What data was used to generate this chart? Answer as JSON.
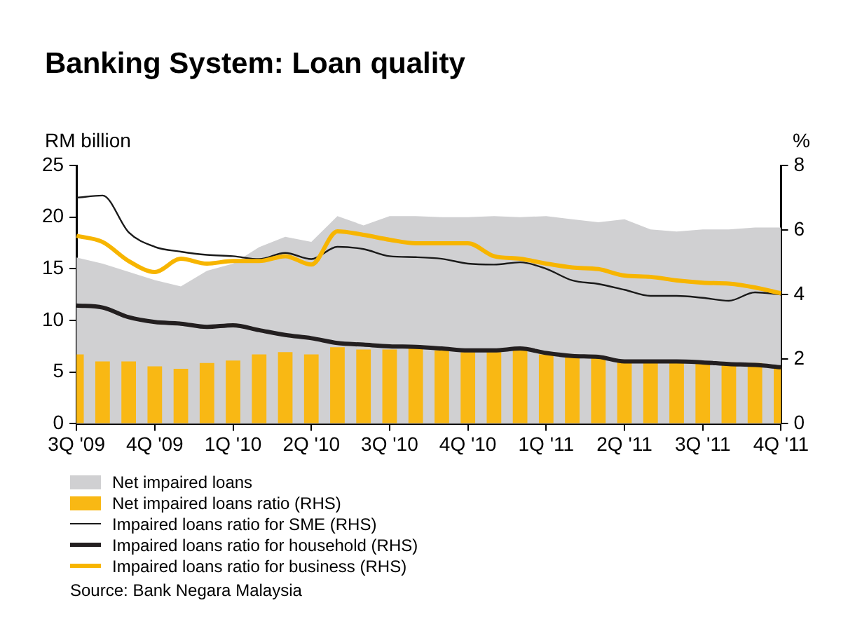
{
  "chart_data": {
    "type": "bar",
    "title": "Banking System: Loan quality",
    "ylabel": "RM billion",
    "y2label": "%",
    "categories": [
      "3Q '09",
      null,
      null,
      "4Q '09",
      null,
      null,
      "1Q '10",
      null,
      null,
      "2Q '10",
      null,
      null,
      "3Q '10",
      null,
      null,
      "4Q '10",
      null,
      null,
      "1Q '11",
      null,
      null,
      "2Q '11",
      null,
      null,
      "3Q '11",
      null,
      null,
      "4Q '11"
    ],
    "series": [
      {
        "name": "Net impaired loans",
        "type": "area",
        "color": "#d0d0d2",
        "values": [
          16.1,
          15.5,
          14.7,
          13.9,
          13.3,
          14.8,
          15.5,
          17.1,
          18.1,
          17.6,
          20.1,
          19.2,
          20.1,
          20.1,
          20.0,
          20.0,
          20.1,
          20.0,
          20.1,
          19.8,
          19.5,
          19.8,
          18.8,
          18.6,
          18.8,
          18.8,
          19.0,
          19.0
        ]
      },
      {
        "name": "Net impaired loans ratio (RHS)",
        "axis": "y2",
        "color": "#f9b814",
        "values": [
          2.15,
          1.93,
          1.93,
          1.78,
          1.7,
          1.88,
          1.96,
          2.15,
          2.22,
          2.15,
          2.37,
          2.3,
          2.3,
          2.33,
          2.27,
          2.22,
          2.22,
          2.27,
          2.15,
          2.07,
          2.07,
          1.93,
          1.93,
          1.93,
          1.93,
          1.88,
          1.88,
          1.78
        ]
      },
      {
        "name": "Impaired loans ratio for SME (RHS)",
        "type": "line",
        "axis": "y2",
        "color": "#1a1a1a",
        "values": [
          7.0,
          7.07,
          5.93,
          5.48,
          5.33,
          5.23,
          5.19,
          5.1,
          5.29,
          5.1,
          5.48,
          5.41,
          5.19,
          5.16,
          5.11,
          4.96,
          4.93,
          5.0,
          4.8,
          4.44,
          4.33,
          4.15,
          3.96,
          3.96,
          3.9,
          3.81,
          4.07,
          4.0
        ]
      },
      {
        "name": "Impaired loans ratio for household (RHS)",
        "type": "line",
        "axis": "y2",
        "color": "#231f20",
        "values": [
          3.66,
          3.6,
          3.3,
          3.15,
          3.1,
          3.0,
          3.05,
          2.9,
          2.75,
          2.65,
          2.5,
          2.45,
          2.4,
          2.38,
          2.33,
          2.27,
          2.27,
          2.33,
          2.19,
          2.1,
          2.07,
          1.93,
          1.93,
          1.93,
          1.9,
          1.85,
          1.82,
          1.75
        ]
      },
      {
        "name": "Impaired loans ratio for business (RHS)",
        "type": "line",
        "axis": "y2",
        "color": "#f7b500",
        "values": [
          5.82,
          5.63,
          5.04,
          4.7,
          5.11,
          4.96,
          5.04,
          5.04,
          5.19,
          4.93,
          5.96,
          5.85,
          5.7,
          5.59,
          5.59,
          5.59,
          5.19,
          5.11,
          4.96,
          4.84,
          4.79,
          4.59,
          4.55,
          4.44,
          4.37,
          4.34,
          4.22,
          4.04
        ]
      }
    ],
    "ylim": [
      0,
      25
    ],
    "yticks": [
      0,
      5,
      10,
      15,
      20,
      25
    ],
    "y2lim": [
      0,
      8
    ],
    "y2ticks": [
      0,
      2,
      4,
      6,
      8
    ],
    "grid": false,
    "legend": "bottom",
    "annotations": [
      "Source: Bank Negara Malaysia"
    ]
  }
}
